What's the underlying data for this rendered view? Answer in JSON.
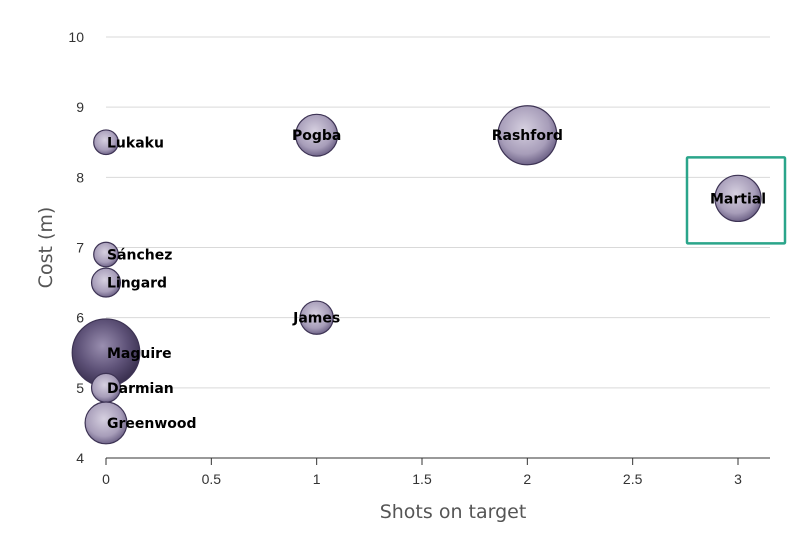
{
  "chart_data": {
    "type": "scatter",
    "title": "",
    "xlabel": "Shots on target",
    "ylabel": "Cost (m)",
    "xlim": [
      0,
      3.15
    ],
    "ylim": [
      4,
      10
    ],
    "x_ticks": [
      0,
      0.5,
      1,
      1.5,
      2,
      2.5,
      3
    ],
    "y_ticks": [
      4,
      5,
      6,
      7,
      8,
      9,
      10
    ],
    "x_tick_labels": [
      "0",
      "0.5",
      "1",
      "1.5",
      "2",
      "2.5",
      "3"
    ],
    "y_tick_labels": [
      "4",
      "5",
      "6",
      "7",
      "8",
      "9",
      "10"
    ],
    "grid": true,
    "bubble_color": "#a79db9",
    "bubble_dark_color": "#4a3f60",
    "highlight_color": "#2aa58a",
    "highlighted": "Martial",
    "points": [
      {
        "label": "Lukaku",
        "x": 0,
        "y": 8.5,
        "size": 1
      },
      {
        "label": "Pogba",
        "x": 1,
        "y": 8.6,
        "size": 3
      },
      {
        "label": "Rashford",
        "x": 2,
        "y": 8.6,
        "size": 5
      },
      {
        "label": "Martial",
        "x": 3,
        "y": 7.7,
        "size": 3.5
      },
      {
        "label": "Sánchez",
        "x": 0,
        "y": 6.9,
        "size": 1
      },
      {
        "label": "Lingard",
        "x": 0,
        "y": 6.5,
        "size": 1.5
      },
      {
        "label": "James",
        "x": 1,
        "y": 6.0,
        "size": 2
      },
      {
        "label": "Maguire",
        "x": 0,
        "y": 5.5,
        "size": 6
      },
      {
        "label": "Darmian",
        "x": 0,
        "y": 5.0,
        "size": 1.5
      },
      {
        "label": "Greenwood",
        "x": 0,
        "y": 4.5,
        "size": 3
      }
    ]
  }
}
